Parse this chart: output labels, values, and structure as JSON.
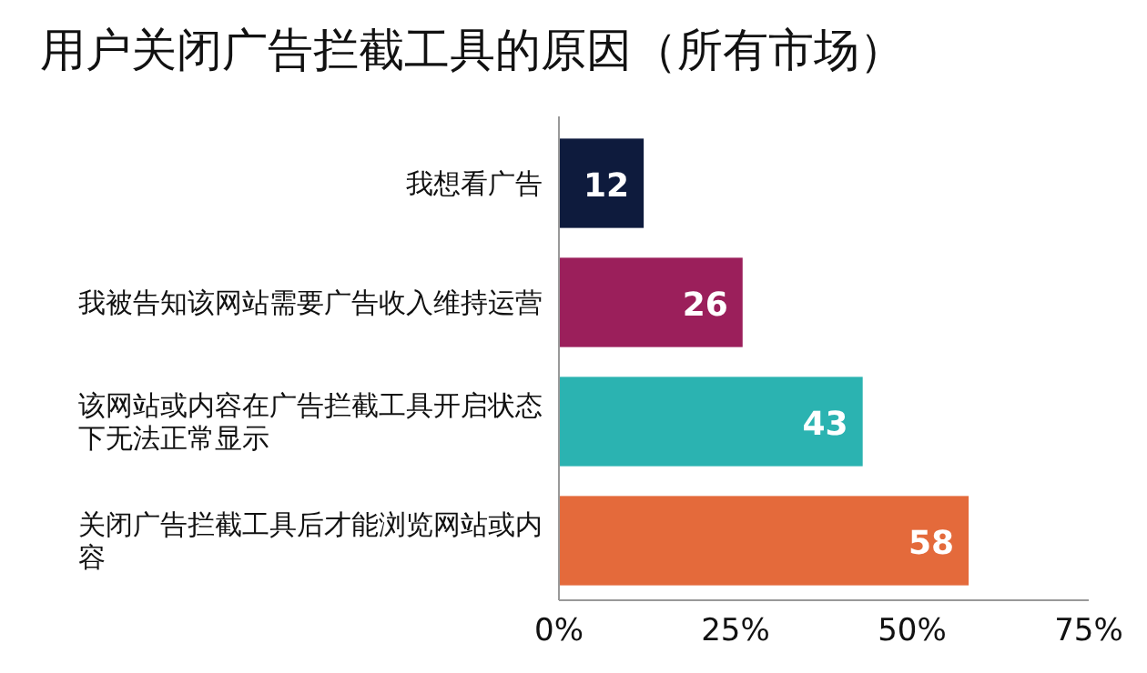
{
  "chart_data": {
    "type": "bar",
    "orientation": "horizontal",
    "title": "用户关闭广告拦截工具的原因（所有市场）",
    "categories": [
      "我想看广告",
      "我被告知该网站需要广告收入维持运营",
      "该网站或内容在广告拦截工具开启状态下无法正常显示",
      "关闭广告拦截工具后才能浏览网站或内容"
    ],
    "values": [
      12,
      26,
      43,
      58
    ],
    "colors": [
      "#0e1b3d",
      "#9b1f5b",
      "#2bb3b1",
      "#e46a3b"
    ],
    "xlim": [
      0,
      75
    ],
    "xticks": [
      {
        "value": 0,
        "label": "0%"
      },
      {
        "value": 25,
        "label": "25%"
      },
      {
        "value": 50,
        "label": "50%"
      },
      {
        "value": 75,
        "label": "75%"
      }
    ],
    "data_labels": true,
    "grid": false
  }
}
